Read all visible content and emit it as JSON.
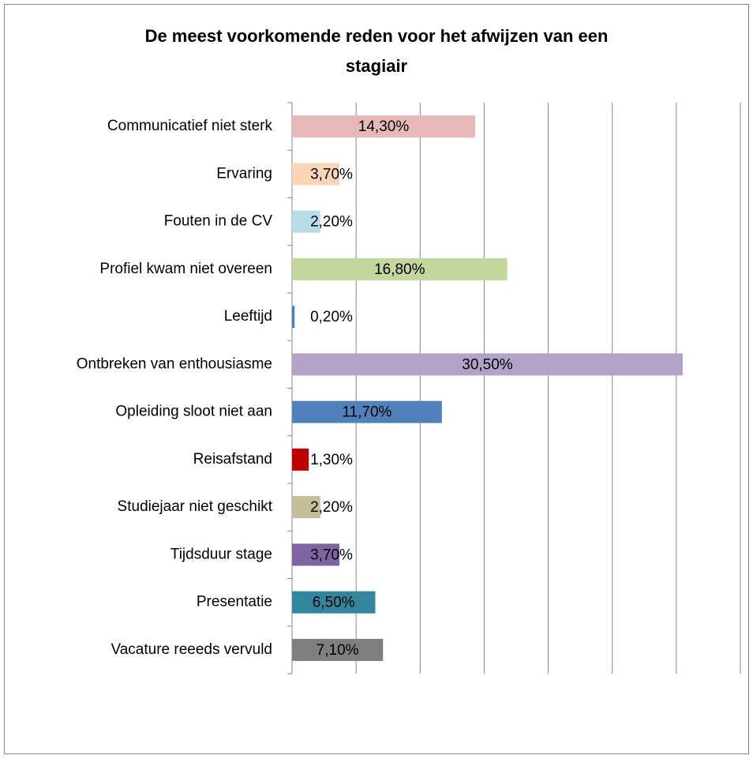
{
  "chart_data": {
    "type": "hbar",
    "title": [
      "De meest voorkomende reden voor het afwijzen van een",
      "stagiair"
    ],
    "categories": [
      "Communicatief niet sterk",
      "Ervaring",
      "Fouten in de CV",
      "Profiel kwam niet overeen",
      "Leeftijd",
      "Ontbreken van enthousiasme",
      "Opleiding sloot niet aan",
      "Reisafstand",
      "Studiejaar niet geschikt",
      "Tijdsduur stage",
      "Presentatie",
      "Vacature reeeds vervuld"
    ],
    "values": [
      14.3,
      3.7,
      2.2,
      16.8,
      0.2,
      30.5,
      11.7,
      1.3,
      2.2,
      3.7,
      6.5,
      7.1
    ],
    "value_labels": [
      "14,30%",
      "3,70%",
      "2,20%",
      "16,80%",
      "0,20%",
      "30,50%",
      "11,70%",
      "1,30%",
      "2,20%",
      "3,70%",
      "6,50%",
      "7,10%"
    ],
    "colors": [
      "#e6b9b8",
      "#fcd5b5",
      "#b7dee8",
      "#c3d69b",
      "#4f81bd",
      "#b3a2c7",
      "#4f81bd",
      "#c00000",
      "#c4bd97",
      "#8064a2",
      "#31859c",
      "#7f7f7f"
    ],
    "xlim": [
      0,
      35
    ],
    "xticks": [
      0,
      5,
      10,
      15,
      20,
      25,
      30,
      35
    ],
    "grid": true
  }
}
